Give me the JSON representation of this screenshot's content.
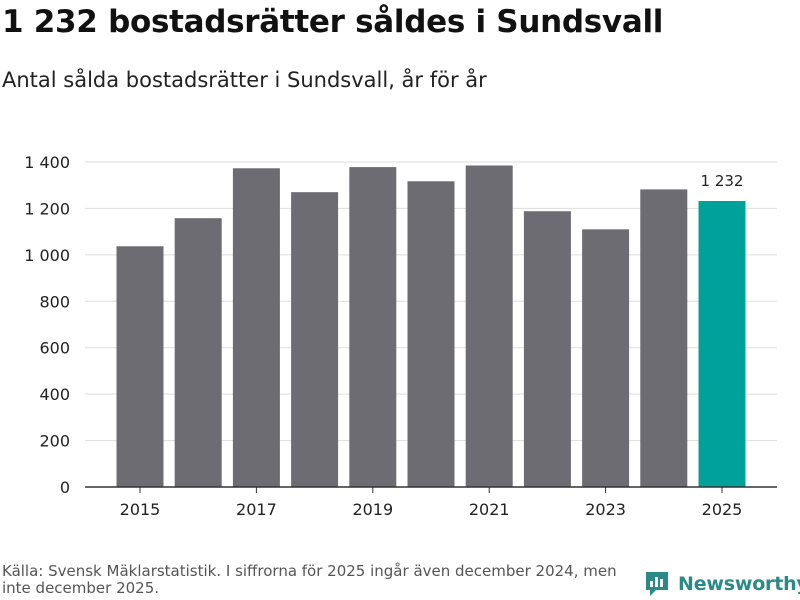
{
  "header": {
    "title": "1 232 bostadsrätter såldes i Sundsvall",
    "subtitle": "Antal sålda bostadsrätter i Sundsvall, år för år"
  },
  "footer": {
    "source": "Källa: Svensk Mäklarstatistik. I siffrorna för 2025 ingår även december 2024, men inte december 2025.",
    "brand": "Newsworthy"
  },
  "colors": {
    "bar": "#6d6c73",
    "highlight": "#00a19a",
    "grid": "#dddddd",
    "axis": "#333333"
  },
  "chart_data": {
    "type": "bar",
    "title": "1 232 bostadsrätter såldes i Sundsvall",
    "subtitle": "Antal sålda bostadsrätter i Sundsvall, år för år",
    "xlabel": "",
    "ylabel": "",
    "categories": [
      "2015",
      "2016",
      "2017",
      "2018",
      "2019",
      "2020",
      "2021",
      "2022",
      "2023",
      "2024",
      "2025"
    ],
    "values": [
      1037,
      1158,
      1373,
      1270,
      1378,
      1317,
      1385,
      1188,
      1110,
      1282,
      1232
    ],
    "highlight_index": 10,
    "ylim": [
      0,
      1400
    ],
    "yticks": [
      0,
      200,
      400,
      600,
      800,
      1000,
      1200,
      1400
    ],
    "ytick_labels": [
      "0",
      "200",
      "400",
      "600",
      "800",
      "1 000",
      "1 200",
      "1 400"
    ],
    "xtick_labels": [
      "2015",
      "2017",
      "2019",
      "2021",
      "2023",
      "2025"
    ],
    "data_labels": [
      {
        "category": "2025",
        "text": "1 232"
      }
    ],
    "grid": true
  }
}
